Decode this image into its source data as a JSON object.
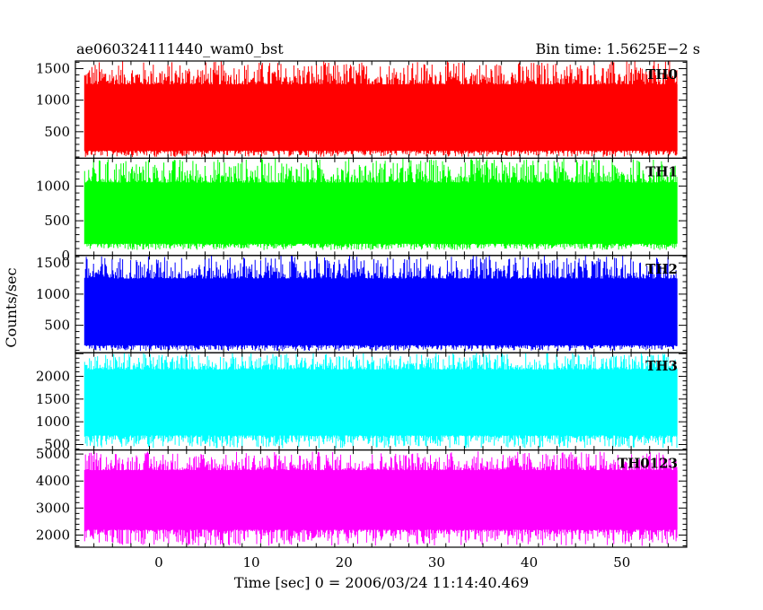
{
  "header": {
    "left_title": "ae060324111440_wam0_bst",
    "right_title": "Bin time: 1.5625E−2 s"
  },
  "ylabel": "Counts/sec",
  "xlabel": "Time [sec] 0 = 2006/03/24 11:14:40.469",
  "chart_data": {
    "type": "line",
    "x_range": [
      -9,
      57
    ],
    "x_ticks": [
      0,
      10,
      20,
      30,
      40,
      50
    ],
    "data_x_range": [
      -8,
      56
    ],
    "bin_time": 0.015625,
    "panels": [
      {
        "name": "TH0",
        "color": "#ff0000",
        "ylim": [
          80,
          1620
        ],
        "y_ticks": [
          500,
          1000,
          1500
        ],
        "band": {
          "low": 200,
          "high": 1250,
          "min": 100,
          "max": 1620
        }
      },
      {
        "name": "TH1",
        "color": "#00ff00",
        "ylim": [
          0,
          1400
        ],
        "y_ticks": [
          0,
          500,
          1000
        ],
        "band": {
          "low": 170,
          "high": 1050,
          "min": 80,
          "max": 1400
        }
      },
      {
        "name": "TH2",
        "color": "#0000ff",
        "ylim": [
          60,
          1620
        ],
        "y_ticks": [
          500,
          1000,
          1500
        ],
        "band": {
          "low": 180,
          "high": 1250,
          "min": 90,
          "max": 1620
        }
      },
      {
        "name": "TH3",
        "color": "#00ffff",
        "ylim": [
          380,
          2520
        ],
        "y_ticks": [
          500,
          1000,
          1500,
          2000
        ],
        "band": {
          "low": 700,
          "high": 2150,
          "min": 420,
          "max": 2520
        }
      },
      {
        "name": "TH0123",
        "color": "#ff00ff",
        "ylim": [
          1550,
          5150
        ],
        "y_ticks": [
          2000,
          3000,
          4000,
          5000
        ],
        "band": {
          "low": 2200,
          "high": 4400,
          "min": 1600,
          "max": 5100
        }
      }
    ]
  }
}
